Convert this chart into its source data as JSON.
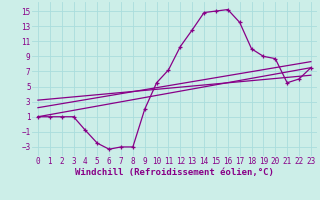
{
  "background_color": "#cceee8",
  "grid_color": "#aadddd",
  "line_color": "#880088",
  "marker": "+",
  "xlabel": "Windchill (Refroidissement éolien,°C)",
  "xlabel_fontsize": 6.5,
  "tick_fontsize": 5.5,
  "xlim": [
    -0.5,
    23.5
  ],
  "ylim": [
    -4.2,
    16.2
  ],
  "yticks": [
    -3,
    -1,
    1,
    3,
    5,
    7,
    9,
    11,
    13,
    15
  ],
  "xticks": [
    0,
    1,
    2,
    3,
    4,
    5,
    6,
    7,
    8,
    9,
    10,
    11,
    12,
    13,
    14,
    15,
    16,
    17,
    18,
    19,
    20,
    21,
    22,
    23
  ],
  "main_x": [
    0,
    1,
    2,
    3,
    4,
    5,
    6,
    7,
    8,
    9,
    10,
    11,
    12,
    13,
    14,
    15,
    16,
    17,
    18,
    19,
    20,
    21,
    22,
    23
  ],
  "main_y": [
    1,
    1,
    1,
    1,
    -0.8,
    -2.5,
    -3.3,
    -3.0,
    -3.0,
    2.0,
    5.5,
    7.2,
    10.3,
    12.5,
    14.8,
    15.0,
    15.2,
    13.5,
    10.0,
    9.0,
    8.7,
    5.5,
    6.0,
    7.5
  ],
  "line1_x": [
    0,
    23
  ],
  "line1_y": [
    1.0,
    7.5
  ],
  "line2_x": [
    0,
    23
  ],
  "line2_y": [
    2.2,
    8.3
  ],
  "line3_x": [
    0,
    23
  ],
  "line3_y": [
    3.2,
    6.5
  ]
}
